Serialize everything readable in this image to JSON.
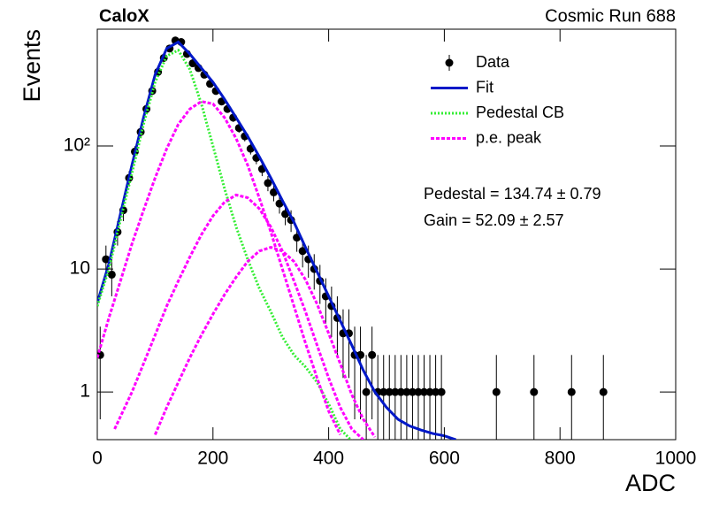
{
  "chart_data": {
    "type": "hist-fit",
    "title": "CaloX",
    "subtitle": "Cosmic Run 688",
    "x_label": "ADC",
    "y_label": "Events",
    "log_y": true,
    "xlim": [
      0,
      1000
    ],
    "ylim": [
      0.41,
      890
    ],
    "xticks": [
      0,
      200,
      400,
      600,
      800,
      1000
    ],
    "yticks": [
      1,
      10,
      {
        "value": 100,
        "label": "10²"
      }
    ],
    "legend": "top-right",
    "annotations": [
      "Pedestal = 134.74 ± 0.79",
      "Gain = 52.09 ± 2.57"
    ],
    "series": [
      {
        "name": "Data",
        "style": "points",
        "color": "#000000",
        "x": [
          5,
          15,
          25,
          35,
          45,
          55,
          65,
          75,
          85,
          95,
          105,
          115,
          125,
          135,
          145,
          155,
          165,
          175,
          185,
          195,
          205,
          215,
          225,
          235,
          245,
          255,
          265,
          275,
          285,
          295,
          305,
          315,
          325,
          335,
          345,
          355,
          365,
          375,
          385,
          395,
          405,
          415,
          425,
          435,
          445,
          455,
          465,
          475,
          485,
          495,
          505,
          515,
          525,
          535,
          545,
          555,
          565,
          575,
          585,
          595,
          690,
          755,
          820,
          875
        ],
        "values": [
          2,
          12,
          9,
          20,
          30,
          55,
          90,
          130,
          200,
          280,
          400,
          520,
          620,
          720,
          700,
          560,
          470,
          430,
          380,
          320,
          280,
          230,
          200,
          170,
          140,
          120,
          95,
          80,
          65,
          50,
          42,
          34,
          28,
          25,
          18,
          14,
          12,
          10,
          8,
          6,
          5,
          4,
          3,
          3,
          2,
          2,
          1,
          2,
          1,
          1,
          1,
          1,
          1,
          1,
          1,
          1,
          1,
          1,
          1,
          1,
          1,
          1,
          1,
          1
        ],
        "errors": [
          1.4,
          3.5,
          3,
          4.5,
          5.5,
          7.4,
          9.5,
          11.4,
          14,
          16.7,
          20,
          22.8,
          24.9,
          26.8,
          26.5,
          23.7,
          21.7,
          20.7,
          19.5,
          17.9,
          16.7,
          15.2,
          14.1,
          13,
          11.8,
          11,
          9.7,
          8.9,
          8.1,
          7.1,
          6.5,
          5.8,
          5.3,
          5,
          4.2,
          3.7,
          3.5,
          3.2,
          2.8,
          2.4,
          2.2,
          2,
          1.7,
          1.7,
          1.4,
          1.4,
          1,
          1.4,
          1,
          1,
          1,
          1,
          1,
          1,
          1,
          1,
          1,
          1,
          1,
          1,
          1,
          1,
          1,
          1
        ]
      },
      {
        "name": "Fit",
        "style": "solid",
        "color": "#0018c8",
        "x": [
          0,
          20,
          40,
          60,
          80,
          100,
          120,
          140,
          160,
          180,
          200,
          220,
          240,
          260,
          280,
          300,
          320,
          340,
          360,
          380,
          400,
          420,
          440,
          460,
          480,
          500,
          520,
          540,
          560,
          580,
          600,
          620
        ],
        "values": [
          5.3,
          11,
          28,
          70,
          170,
          380,
          620,
          700,
          560,
          430,
          330,
          240,
          170,
          120,
          82,
          55,
          36,
          24,
          15,
          9.5,
          6,
          3.8,
          2.4,
          1.5,
          1.0,
          0.75,
          0.6,
          0.53,
          0.49,
          0.46,
          0.44,
          0.41
        ]
      },
      {
        "name": "Pedestal CB",
        "style": "dotted",
        "color": "#33ee33",
        "x": [
          0,
          20,
          40,
          60,
          80,
          100,
          120,
          140,
          160,
          180,
          200,
          220,
          240,
          260,
          280,
          300,
          320,
          340,
          360,
          380,
          400,
          420,
          440
        ],
        "values": [
          5,
          10,
          25,
          60,
          150,
          330,
          540,
          600,
          420,
          220,
          100,
          45,
          22,
          12,
          7,
          4.5,
          2.8,
          2.0,
          1.6,
          1.2,
          0.8,
          0.5,
          0.4
        ]
      },
      {
        "name": "p.e. peak",
        "style": "dashed",
        "color": "#ff00ff",
        "x": [
          0,
          20,
          40,
          60,
          80,
          100,
          120,
          140,
          160,
          180,
          200,
          220,
          240,
          260,
          280,
          300,
          320,
          340,
          360,
          380,
          400,
          420
        ],
        "values": [
          1.9,
          4,
          8,
          16,
          30,
          55,
          95,
          150,
          200,
          230,
          220,
          170,
          115,
          70,
          38,
          20,
          10,
          5,
          2.5,
          1.3,
          0.7,
          0.45
        ]
      },
      {
        "style": "dashed",
        "color": "#ff00ff",
        "x": [
          30,
          60,
          80,
          100,
          120,
          140,
          160,
          180,
          200,
          220,
          240,
          260,
          280,
          300,
          320,
          340,
          360,
          380,
          400,
          420,
          440,
          460
        ],
        "values": [
          0.5,
          1.0,
          1.7,
          2.9,
          5,
          8,
          12.5,
          19,
          27,
          35,
          40,
          38,
          31,
          22,
          14,
          8,
          4.5,
          2.4,
          1.3,
          0.75,
          0.5,
          0.41
        ]
      },
      {
        "style": "dashed",
        "color": "#ff00ff",
        "x": [
          100,
          120,
          140,
          160,
          180,
          200,
          220,
          240,
          260,
          280,
          300,
          320,
          340,
          360,
          380,
          400,
          420,
          440,
          460,
          480
        ],
        "values": [
          0.45,
          0.75,
          1.2,
          1.9,
          2.9,
          4.3,
          6.2,
          8.6,
          11.5,
          14,
          15,
          14,
          11.5,
          8.2,
          5.2,
          3,
          1.7,
          0.95,
          0.6,
          0.43
        ]
      }
    ]
  }
}
